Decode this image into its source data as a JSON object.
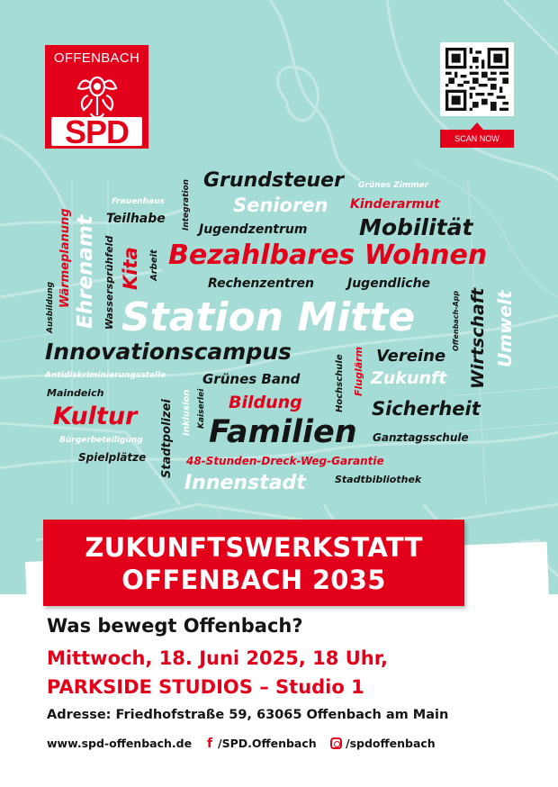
{
  "logo": {
    "city": "OFFENBACH",
    "party": "SPD"
  },
  "qr": {
    "label": "SCAN NOW"
  },
  "cloud": {
    "grundsteuer": "Grundsteuer",
    "gruenes_zimmer": "Grünes Zimmer",
    "frauenhaus": "Frauenhaus",
    "integration": "Integration",
    "senioren": "Senioren",
    "kinderarmut": "Kinderarmut",
    "teilhabe": "Teilhabe",
    "ehrenamt": "Ehrenamt",
    "jugendzentrum": "Jugendzentrum",
    "mobilitaet": "Mobilität",
    "waermeplanung": "Wärmeplanung",
    "wasserspruehfeld": "Wassersprühfeld",
    "kita": "Kita",
    "arbeit": "Arbeit",
    "bezahlbares_wohnen": "Bezahlbares Wohnen",
    "ausbildung": "Ausbildung",
    "rechenzentren": "Rechenzentren",
    "jugendliche": "Jugendliche",
    "offenbach_app": "Offenbach-App",
    "wirtschaft": "Wirtschaft",
    "umwelt": "Umwelt",
    "station_mitte": "Station Mitte",
    "innovationscampus": "Innovationscampus",
    "vereine": "Vereine",
    "hochschule": "Hochschule",
    "fluglaerm": "Fluglärm",
    "antidiskriminierungsstelle": "Antidiskriminierungsstelle",
    "gruenes_band": "Grünes Band",
    "zukunft": "Zukunft",
    "maindeich": "Maindeich",
    "inklusion": "Inklusion",
    "kaiserlei": "Kaiserlei",
    "bildung": "Bildung",
    "sicherheit": "Sicherheit",
    "kultur": "Kultur",
    "stadtpolizei": "Stadtpolizei",
    "familien": "Familien",
    "buergerbeteiligung": "Bürgerbeteiligung",
    "ganztagsschule": "Ganztagsschule",
    "spielplaetze": "Spielplätze",
    "dreck_weg": "48-Stunden-Dreck-Weg-Garantie",
    "innenstadt": "Innenstadt",
    "stadtbibliothek": "Stadtbibliothek"
  },
  "banner": {
    "line1": "ZUKUNFTSWERKSTATT",
    "line2": "OFFENBACH 2035"
  },
  "event": {
    "question": "Was bewegt Offenbach?",
    "date": "Mittwoch, 18. Juni 2025, 18 Uhr,",
    "venue": "PARKSIDE STUDIOS – Studio 1",
    "address": "Adresse: Friedhofstraße 59, 63065 Offenbach am Main"
  },
  "footer": {
    "website": "www.spd-offenbach.de",
    "facebook": "/SPD.Offenbach",
    "instagram": "/spdoffenbach"
  },
  "colors": {
    "red": "#e3001b",
    "mint": "#a6dcd6",
    "text": "#141414"
  },
  "icons": {
    "facebook": "facebook-icon",
    "instagram": "instagram-icon"
  }
}
